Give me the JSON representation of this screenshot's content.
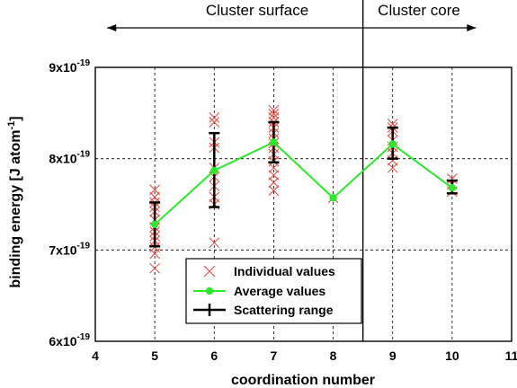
{
  "chart_data": {
    "type": "scatter",
    "xlabel": "coordination number",
    "ylabel": "binding energy [J atom",
    "ylabel_sup": "-1",
    "ylabel_close": "]",
    "xlim": [
      4,
      11
    ],
    "ylim": [
      6e-19,
      9e-19
    ],
    "x_ticks": [
      4,
      5,
      6,
      7,
      8,
      9,
      10,
      11
    ],
    "y_ticks": [
      {
        "value": 6e-19,
        "base": "6x10",
        "exp": "-19"
      },
      {
        "value": 7e-19,
        "base": "7x10",
        "exp": "-19"
      },
      {
        "value": 8e-19,
        "base": "8x10",
        "exp": "-19"
      },
      {
        "value": 9e-19,
        "base": "9x10",
        "exp": "-19"
      }
    ],
    "grid": "dashed",
    "regions": [
      {
        "label": "Cluster surface",
        "x_from": 4.2,
        "x_to": 8.5
      },
      {
        "label": "Cluster core",
        "x_from": 8.5,
        "x_to": 10.4
      }
    ],
    "region_divider_x": 8.5,
    "legend": {
      "placement": "bottom-center",
      "entries": [
        "Individual values",
        "Average values",
        "Scattering range"
      ]
    },
    "series": [
      {
        "name": "Individual values",
        "marker": "x",
        "color": "#e8453c",
        "points": [
          [
            5,
            7.66e-19
          ],
          [
            5,
            7.58e-19
          ],
          [
            5,
            7.52e-19
          ],
          [
            5,
            7.47e-19
          ],
          [
            5,
            7.42e-19
          ],
          [
            5,
            7.33e-19
          ],
          [
            5,
            7.25e-19
          ],
          [
            5,
            7.2e-19
          ],
          [
            5,
            7.15e-19
          ],
          [
            5,
            7.1e-19
          ],
          [
            5,
            7.03e-19
          ],
          [
            5,
            6.96e-19
          ],
          [
            5,
            6.8e-19
          ],
          [
            6,
            8.45e-19
          ],
          [
            6,
            8.4e-19
          ],
          [
            6,
            8.18e-19
          ],
          [
            6,
            8.12e-19
          ],
          [
            6,
            7.9e-19
          ],
          [
            6,
            7.8e-19
          ],
          [
            6,
            7.7e-19
          ],
          [
            6,
            7.58e-19
          ],
          [
            6,
            7.5e-19
          ],
          [
            6,
            7.08e-19
          ],
          [
            7,
            8.53e-19
          ],
          [
            7,
            8.49e-19
          ],
          [
            7,
            8.45e-19
          ],
          [
            7,
            8.4e-19
          ],
          [
            7,
            8.34e-19
          ],
          [
            7,
            8.28e-19
          ],
          [
            7,
            8.22e-19
          ],
          [
            7,
            8.17e-19
          ],
          [
            7,
            8.12e-19
          ],
          [
            7,
            8.05e-19
          ],
          [
            7,
            7.97e-19
          ],
          [
            7,
            7.9e-19
          ],
          [
            7,
            7.82e-19
          ],
          [
            7,
            7.74e-19
          ],
          [
            7,
            7.65e-19
          ],
          [
            8,
            7.57e-19
          ],
          [
            9,
            8.38e-19
          ],
          [
            9,
            8.34e-19
          ],
          [
            9,
            8.3e-19
          ],
          [
            9,
            8.2e-19
          ],
          [
            9,
            8.13e-19
          ],
          [
            9,
            8.06e-19
          ],
          [
            9,
            7.98e-19
          ],
          [
            9,
            7.9e-19
          ],
          [
            10,
            7.78e-19
          ],
          [
            10,
            7.72e-19
          ],
          [
            10,
            7.64e-19
          ]
        ]
      },
      {
        "name": "Average values",
        "marker": "circle-line",
        "color": "#2ee62e",
        "x": [
          5,
          6,
          7,
          8,
          9,
          10
        ],
        "y": [
          7.28e-19,
          7.87e-19,
          8.18e-19,
          7.57e-19,
          8.16e-19,
          7.68e-19
        ]
      },
      {
        "name": "Scattering range",
        "marker": "plus-bar",
        "color": "#000000",
        "x": [
          5,
          6,
          7,
          9,
          10
        ],
        "upper": [
          7.52e-19,
          8.28e-19,
          8.4e-19,
          8.34e-19,
          7.76e-19
        ],
        "lower": [
          7.04e-19,
          7.47e-19,
          7.96e-19,
          8e-19,
          7.62e-19
        ]
      }
    ]
  }
}
